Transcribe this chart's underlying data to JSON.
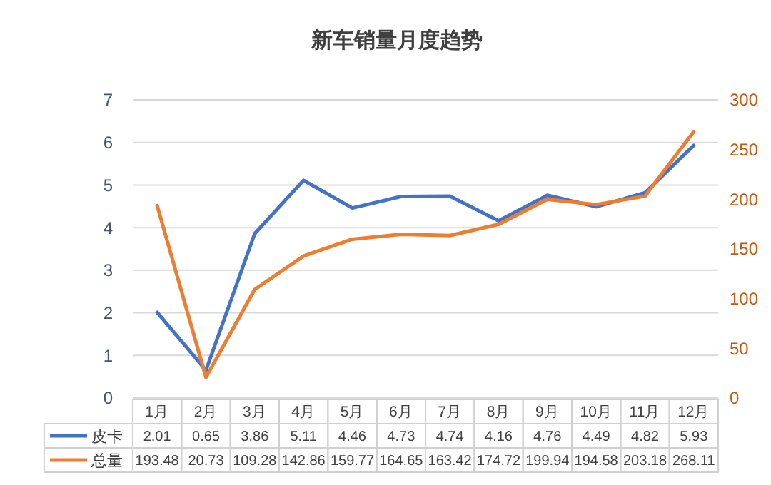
{
  "chart_data": {
    "type": "line",
    "title": "新车销量月度趋势",
    "categories": [
      "1月",
      "2月",
      "3月",
      "4月",
      "5月",
      "6月",
      "7月",
      "8月",
      "9月",
      "10月",
      "11月",
      "12月"
    ],
    "series": [
      {
        "name": "皮卡",
        "color": "#4472c4",
        "values": [
          2.01,
          0.65,
          3.86,
          5.11,
          4.46,
          4.73,
          4.74,
          4.16,
          4.76,
          4.49,
          4.82,
          5.93
        ]
      },
      {
        "name": "总量",
        "color": "#ed7d31",
        "axis": "y2",
        "values": [
          193.48,
          20.73,
          109.28,
          142.86,
          159.77,
          164.65,
          163.42,
          174.72,
          199.94,
          194.58,
          203.18,
          268.11
        ]
      }
    ],
    "ylim": [
      0,
      7
    ],
    "yticks": [
      0,
      1,
      2,
      3,
      4,
      5,
      6,
      7
    ],
    "y2lim": [
      0,
      300
    ],
    "y2ticks": [
      0,
      50,
      100,
      150,
      200,
      250,
      300
    ],
    "grid": "y",
    "data_labels": true,
    "legend": "bottom",
    "marker": "none",
    "line_style": "solid"
  }
}
